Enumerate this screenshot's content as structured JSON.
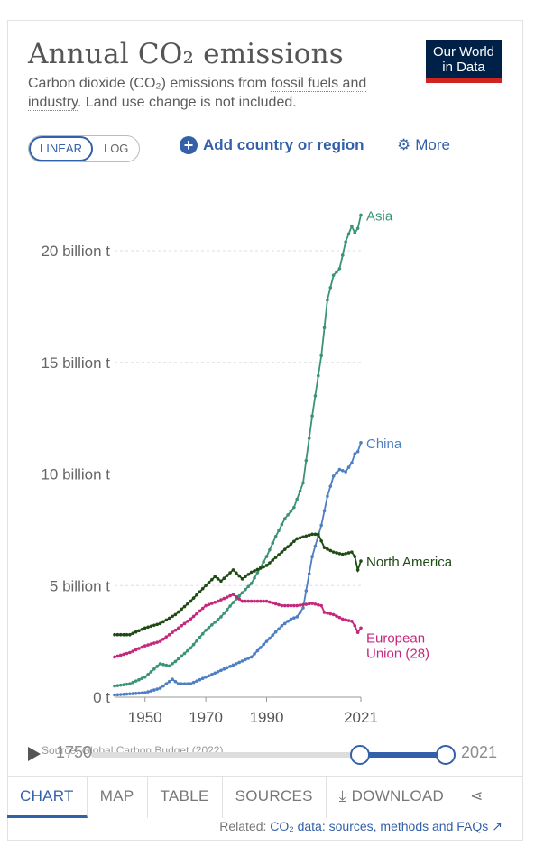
{
  "header": {
    "title": "Annual CO₂ emissions",
    "subtitle_pre": "Carbon dioxide (CO₂) emissions from ",
    "subtitle_link": "fossil fuels and industry",
    "subtitle_post": ". Land use change is not included.",
    "logo_line1": "Our World",
    "logo_line2": "in Data"
  },
  "controls": {
    "linear_label": "LINEAR",
    "log_label": "LOG",
    "add_label": "Add country or region",
    "more_label": "More"
  },
  "timeline": {
    "source_text": "Source: Global Carbon Budget (2022)",
    "start_year": "1750",
    "end_year": "2021"
  },
  "tabs": {
    "chart": "CHART",
    "map": "MAP",
    "table": "TABLE",
    "sources": "SOURCES",
    "download": "DOWNLOAD"
  },
  "related": {
    "prefix": "Related: ",
    "link": "CO₂ data: sources, methods and FAQs"
  },
  "colors": {
    "asia": "#3a9474",
    "china": "#4d7fc2",
    "north_america": "#1e4a14",
    "eu": "#c4277c",
    "accent": "#3360a9"
  },
  "chart_data": {
    "type": "line",
    "ylabel": "",
    "xlabel": "",
    "xlim": [
      1940,
      2021
    ],
    "ylim": [
      0,
      22
    ],
    "x_ticks": [
      "1950",
      "1970",
      "1990",
      "2021"
    ],
    "y_ticks": [
      {
        "value": 0,
        "label": "0 t"
      },
      {
        "value": 5,
        "label": "5 billion t"
      },
      {
        "value": 10,
        "label": "10 billion t"
      },
      {
        "value": 15,
        "label": "15 billion t"
      },
      {
        "value": 20,
        "label": "20 billion t"
      }
    ],
    "series": [
      {
        "name": "Asia",
        "color": "#3a9474",
        "points": [
          [
            1940,
            0.5
          ],
          [
            1945,
            0.6
          ],
          [
            1950,
            0.9
          ],
          [
            1955,
            1.5
          ],
          [
            1958,
            1.4
          ],
          [
            1960,
            1.6
          ],
          [
            1965,
            2.2
          ],
          [
            1970,
            3.0
          ],
          [
            1975,
            3.6
          ],
          [
            1980,
            4.4
          ],
          [
            1985,
            5.1
          ],
          [
            1990,
            6.3
          ],
          [
            1993,
            7.2
          ],
          [
            1996,
            8.0
          ],
          [
            1999,
            8.5
          ],
          [
            2002,
            9.6
          ],
          [
            2005,
            12.6
          ],
          [
            2008,
            15.3
          ],
          [
            2010,
            17.8
          ],
          [
            2012,
            18.9
          ],
          [
            2014,
            19.2
          ],
          [
            2016,
            20.4
          ],
          [
            2018,
            21.1
          ],
          [
            2019,
            20.8
          ],
          [
            2020,
            21.0
          ],
          [
            2021,
            21.6
          ]
        ]
      },
      {
        "name": "China",
        "color": "#4d7fc2",
        "points": [
          [
            1940,
            0.1
          ],
          [
            1945,
            0.15
          ],
          [
            1950,
            0.2
          ],
          [
            1955,
            0.4
          ],
          [
            1959,
            0.8
          ],
          [
            1961,
            0.6
          ],
          [
            1965,
            0.6
          ],
          [
            1970,
            0.9
          ],
          [
            1975,
            1.2
          ],
          [
            1980,
            1.5
          ],
          [
            1985,
            1.8
          ],
          [
            1990,
            2.5
          ],
          [
            1995,
            3.2
          ],
          [
            1998,
            3.5
          ],
          [
            2000,
            3.6
          ],
          [
            2002,
            4.0
          ],
          [
            2005,
            6.3
          ],
          [
            2008,
            7.7
          ],
          [
            2010,
            9.0
          ],
          [
            2012,
            9.9
          ],
          [
            2014,
            10.2
          ],
          [
            2016,
            10.1
          ],
          [
            2018,
            10.5
          ],
          [
            2019,
            10.9
          ],
          [
            2020,
            11.0
          ],
          [
            2021,
            11.4
          ]
        ]
      },
      {
        "name": "North America",
        "color": "#1e4a14",
        "points": [
          [
            1940,
            2.8
          ],
          [
            1945,
            2.8
          ],
          [
            1950,
            3.1
          ],
          [
            1955,
            3.3
          ],
          [
            1960,
            3.7
          ],
          [
            1965,
            4.3
          ],
          [
            1970,
            5.0
          ],
          [
            1973,
            5.4
          ],
          [
            1975,
            5.2
          ],
          [
            1979,
            5.7
          ],
          [
            1982,
            5.3
          ],
          [
            1985,
            5.6
          ],
          [
            1990,
            5.9
          ],
          [
            1995,
            6.5
          ],
          [
            2000,
            7.1
          ],
          [
            2005,
            7.3
          ],
          [
            2007,
            7.3
          ],
          [
            2009,
            6.7
          ],
          [
            2012,
            6.5
          ],
          [
            2015,
            6.4
          ],
          [
            2018,
            6.5
          ],
          [
            2019,
            6.3
          ],
          [
            2020,
            5.7
          ],
          [
            2021,
            6.1
          ]
        ]
      },
      {
        "name": "European\nUnion (28)",
        "color": "#c4277c",
        "points": [
          [
            1940,
            1.8
          ],
          [
            1945,
            2.0
          ],
          [
            1950,
            2.3
          ],
          [
            1955,
            2.5
          ],
          [
            1960,
            3.0
          ],
          [
            1965,
            3.5
          ],
          [
            1970,
            4.1
          ],
          [
            1974,
            4.3
          ],
          [
            1979,
            4.6
          ],
          [
            1982,
            4.3
          ],
          [
            1985,
            4.3
          ],
          [
            1990,
            4.3
          ],
          [
            1995,
            4.1
          ],
          [
            2000,
            4.1
          ],
          [
            2005,
            4.2
          ],
          [
            2008,
            4.1
          ],
          [
            2009,
            3.8
          ],
          [
            2012,
            3.7
          ],
          [
            2015,
            3.5
          ],
          [
            2018,
            3.4
          ],
          [
            2019,
            3.2
          ],
          [
            2020,
            2.9
          ],
          [
            2021,
            3.1
          ]
        ]
      }
    ]
  }
}
